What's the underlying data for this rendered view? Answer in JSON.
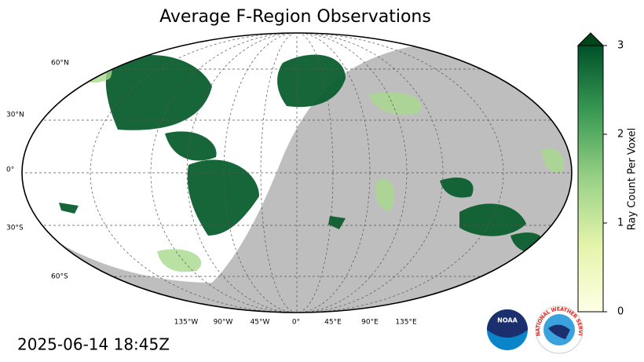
{
  "title": "Average F-Region Observations",
  "timestamp": "2025-06-14 18:45Z",
  "map": {
    "lat_labels": [
      "60°N",
      "30°N",
      "0°",
      "30°S",
      "60°S"
    ],
    "lon_labels": [
      "135°W",
      "90°W",
      "45°W",
      "0°",
      "45°E",
      "90°E",
      "135°E"
    ]
  },
  "colorbar": {
    "label": "Ray Count Per Voxel",
    "lim": [
      0,
      3
    ],
    "ticks": [
      0,
      1,
      2,
      3
    ]
  },
  "logos": {
    "noaa": "NOAA",
    "nws": "NATIONAL WEATHER SERVICE"
  }
}
